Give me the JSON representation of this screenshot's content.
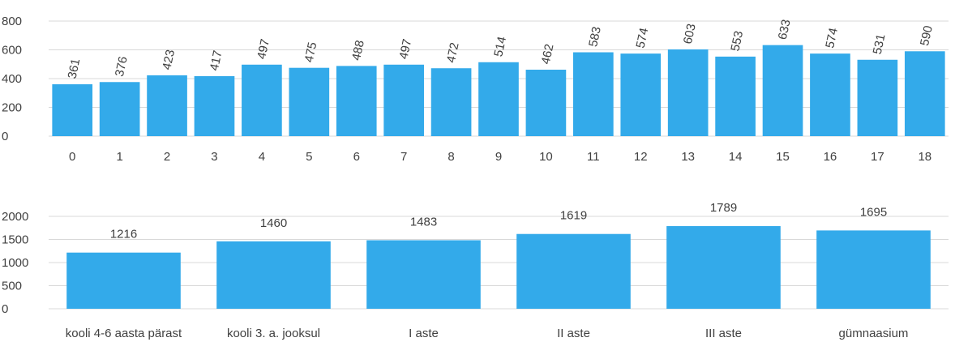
{
  "colors": {
    "bar": "#33aaea",
    "grid": "#d9d9d9",
    "text": "#404040"
  },
  "chart_data": [
    {
      "type": "bar",
      "title": "",
      "xlabel": "",
      "ylabel": "",
      "ylim": [
        0,
        800
      ],
      "yticks": [
        0,
        200,
        400,
        600,
        800
      ],
      "grid": true,
      "categories": [
        "0",
        "1",
        "2",
        "3",
        "4",
        "5",
        "6",
        "7",
        "8",
        "9",
        "10",
        "11",
        "12",
        "13",
        "14",
        "15",
        "16",
        "17",
        "18"
      ],
      "values": [
        361,
        376,
        423,
        417,
        497,
        475,
        488,
        497,
        472,
        514,
        462,
        583,
        574,
        603,
        553,
        633,
        574,
        531,
        590
      ]
    },
    {
      "type": "bar",
      "title": "",
      "xlabel": "",
      "ylabel": "",
      "ylim": [
        0,
        2000
      ],
      "yticks": [
        0,
        500,
        1000,
        1500,
        2000
      ],
      "grid": true,
      "categories": [
        "kooli 4-6 aasta pärast",
        "kooli 3. a. jooksul",
        "I aste",
        "II aste",
        "III aste",
        "gümnaasium"
      ],
      "values": [
        1216,
        1460,
        1483,
        1619,
        1789,
        1695
      ]
    }
  ]
}
